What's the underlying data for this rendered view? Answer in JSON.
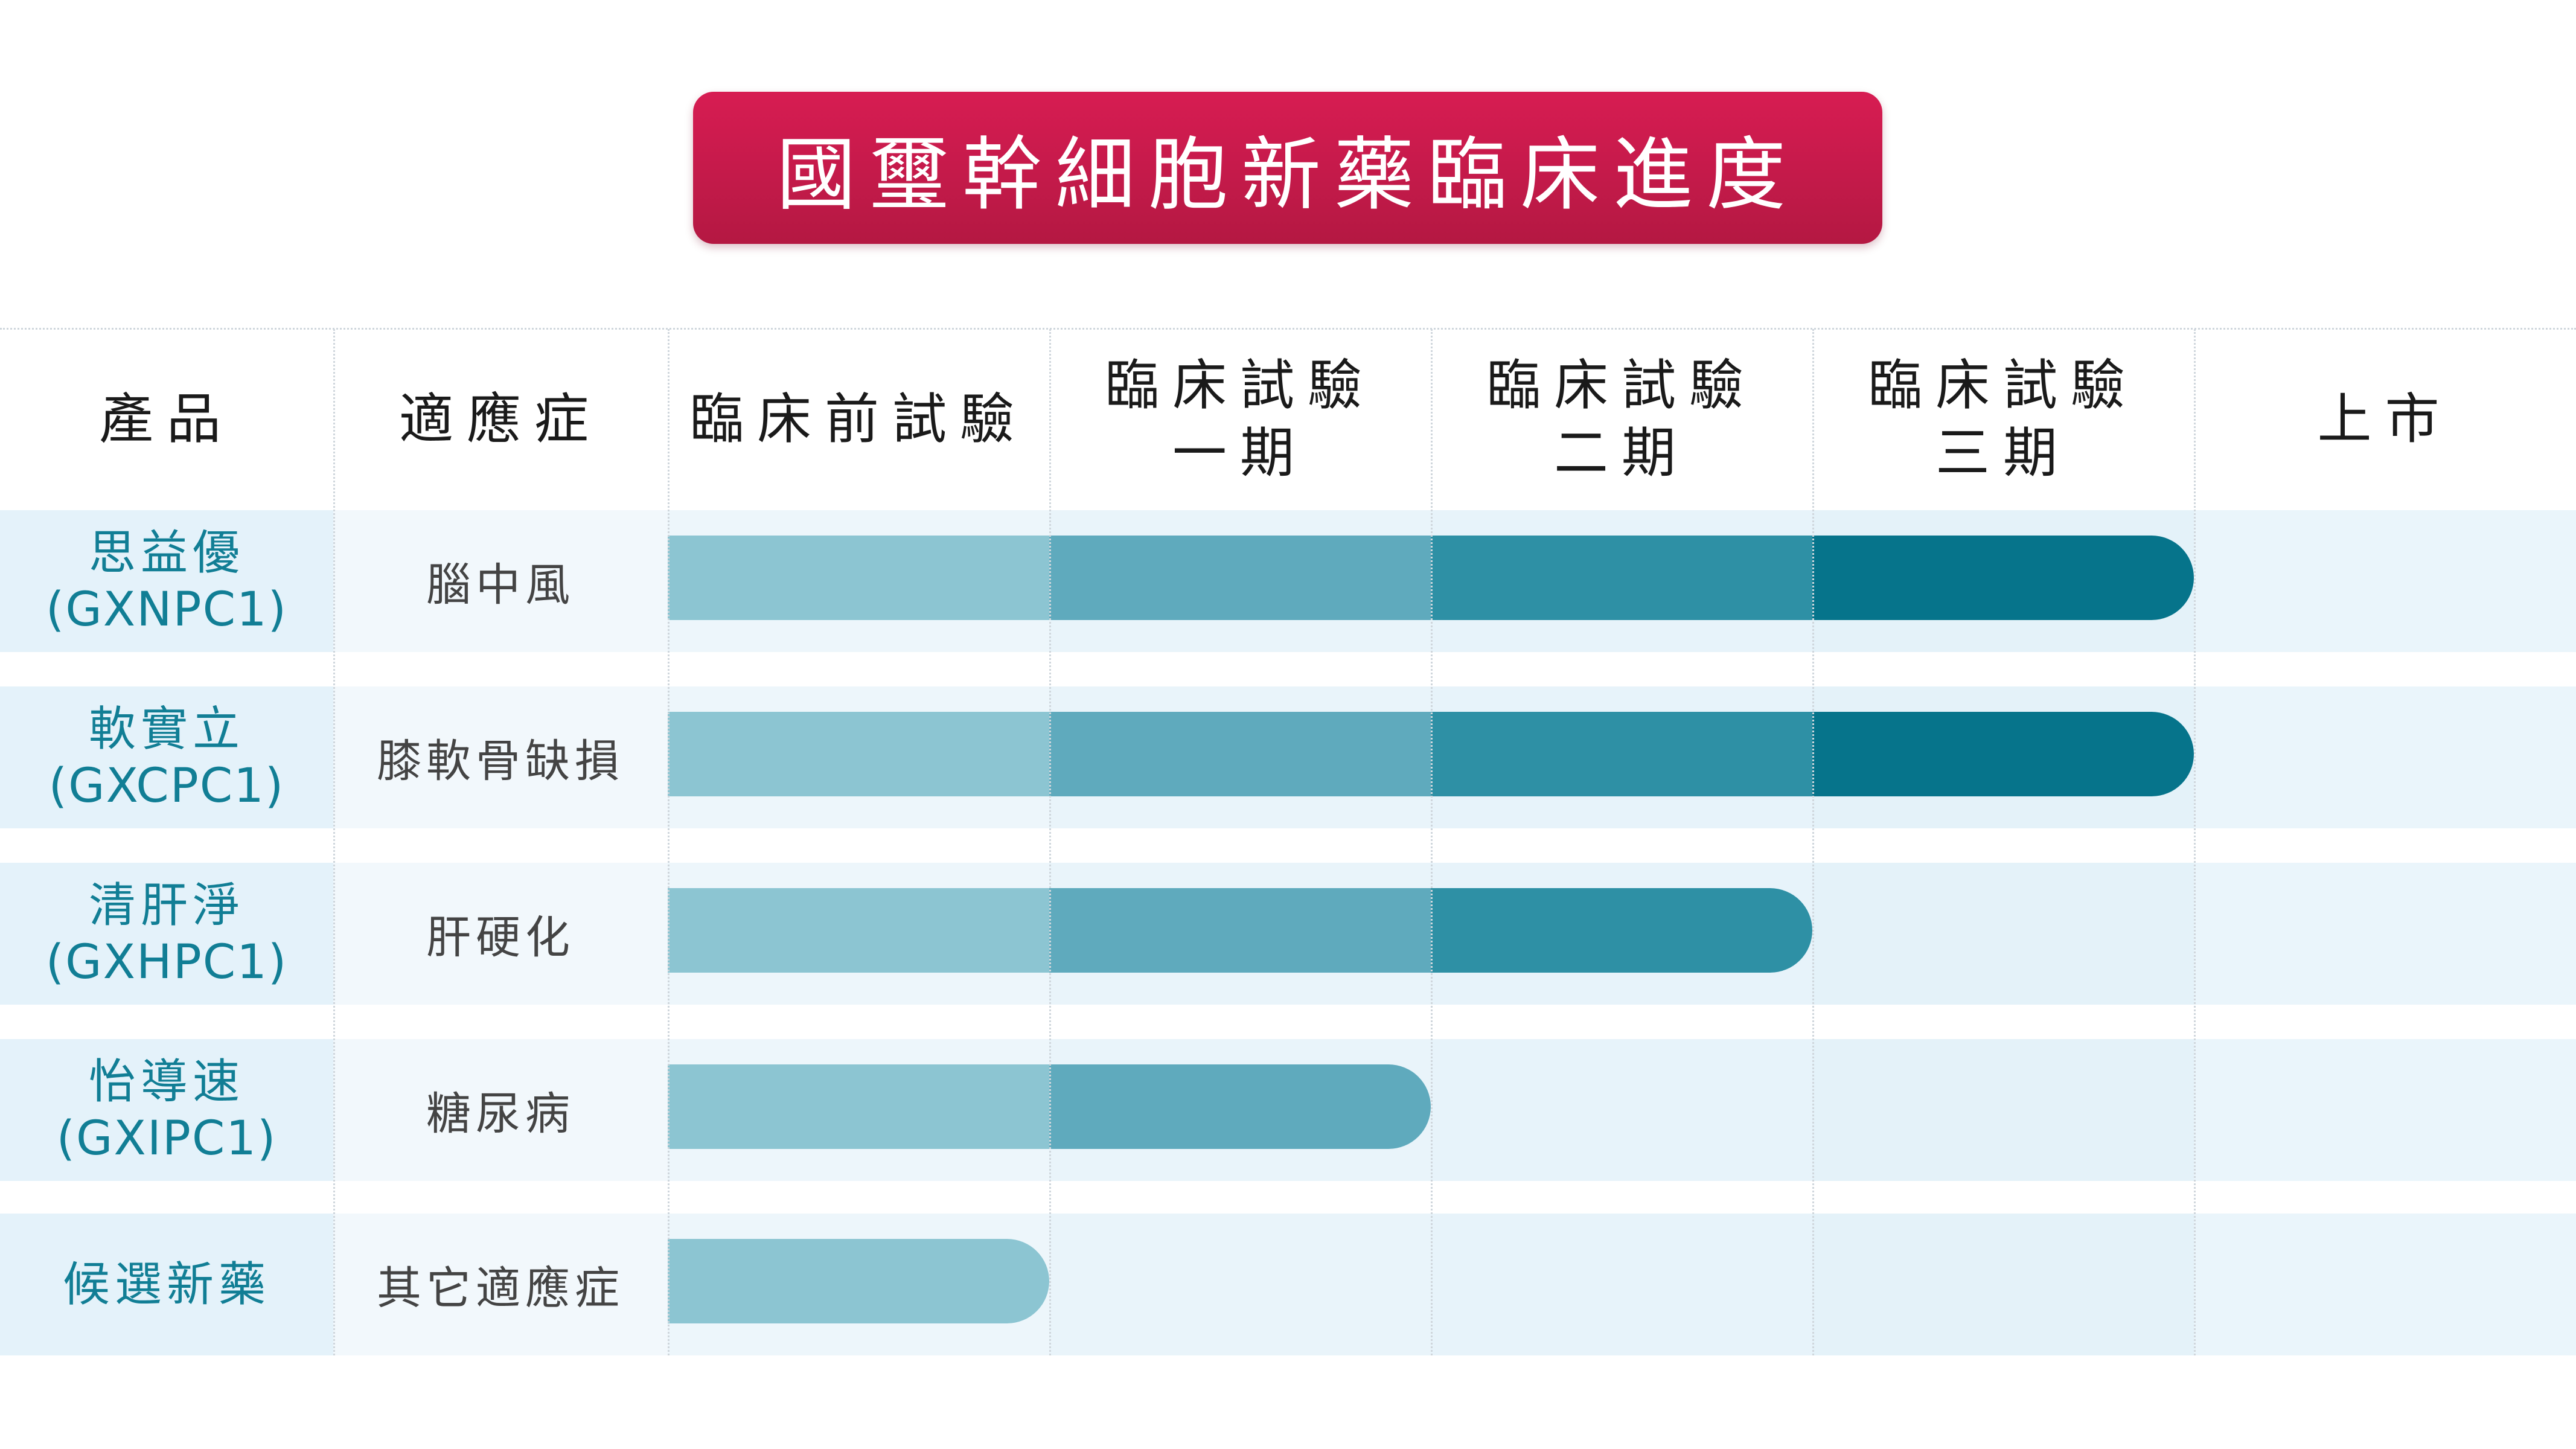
{
  "title": "國璽幹細胞新藥臨床進度",
  "headers": {
    "product": "產品",
    "indication": "適應症",
    "stages": [
      {
        "line1": "臨床前試驗",
        "line2": ""
      },
      {
        "line1": "臨床試驗",
        "line2": "一期"
      },
      {
        "line1": "臨床試驗",
        "line2": "二期"
      },
      {
        "line1": "臨床試驗",
        "line2": "三期"
      },
      {
        "line1": "上市",
        "line2": ""
      }
    ]
  },
  "stage_colors": [
    "#8cc5d2",
    "#5faabd",
    "#2e90a5",
    "#06748b"
  ],
  "rows": [
    {
      "name": "思益優",
      "code": "(GXNPC1)",
      "indication": "腦中風",
      "stages_reached": 4
    },
    {
      "name": "軟實立",
      "code": "(GXCPC1)",
      "indication": "膝軟骨缺損",
      "stages_reached": 4
    },
    {
      "name": "清肝淨",
      "code": "(GXHPC1)",
      "indication": "肝硬化",
      "stages_reached": 3
    },
    {
      "name": "怡導速",
      "code": "(GXIPC1)",
      "indication": "糖尿病",
      "stages_reached": 2
    },
    {
      "name": "候選新藥",
      "code": "",
      "indication": "其它適應症",
      "stages_reached": 1
    }
  ]
}
